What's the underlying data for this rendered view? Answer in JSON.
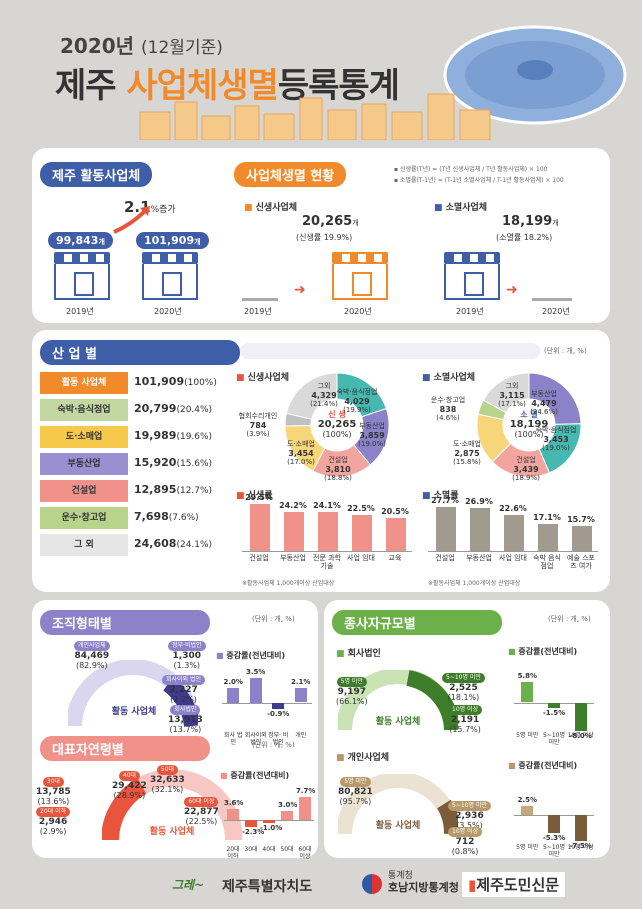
{
  "header": {
    "year_line_bold": "2020년",
    "year_line_rest": "(12월기준)",
    "title_a": "제주",
    "title_b": "사업체생멸",
    "title_c": "등록통계"
  },
  "s1": {
    "active_title": "제주 활동사업체",
    "status_title": "사업체생멸 현황",
    "note1": "▪ 신생률(T년) = (T년 신생사업체 / T년 활동사업체) × 100",
    "note2": "▪ 소멸률(T-1년) = (T-1년 소멸사업체 / T-1년 활동사업체) × 100",
    "increase": "2.1",
    "increase_unit": "%증가",
    "v2019": "99,843",
    "v2020": "101,909",
    "unit_gae": "개",
    "y2019": "2019년",
    "y2020": "2020년",
    "new_tag": "신생사업체",
    "new_value": "20,265",
    "new_rate": "(신생률 19.9%)",
    "gone_tag": "소멸사업체",
    "gone_value": "18,199",
    "gone_rate": "(소멸률 18.2%)"
  },
  "s2": {
    "title": "산 업 별",
    "unit": "(단위 : 개, %)",
    "rows": [
      {
        "label": "활동 사업체",
        "value": "101,909",
        "pct": "(100%)",
        "color": "#f08a2a"
      },
      {
        "label": "숙박·음식점업",
        "value": "20,799",
        "pct": "(20.4%)",
        "color": "#c3d7a3"
      },
      {
        "label": "도·소매업",
        "value": "19,989",
        "pct": "(19.6%)",
        "color": "#f6c94a"
      },
      {
        "label": "부동산업",
        "value": "15,920",
        "pct": "(15.6%)",
        "color": "#9a8fd1"
      },
      {
        "label": "건설업",
        "value": "12,895",
        "pct": "(12.7%)",
        "color": "#f0928a"
      },
      {
        "label": "운수·창고업",
        "value": "7,698",
        "pct": "(7.6%)",
        "color": "#b8d48a"
      },
      {
        "label": "그 외",
        "value": "24,608",
        "pct": "(24.1%)",
        "color": "#e6e6e6"
      }
    ],
    "new_title": "신생사업체",
    "new_center": "신 생",
    "new_total": "20,265",
    "new_total_pct": "(100%)",
    "new_slices": [
      {
        "label": "숙박·음식점업",
        "value": "4,029",
        "pct": "(19.9%)",
        "color": "#46b8b0",
        "frac": 0.199
      },
      {
        "label": "부동산업",
        "value": "3,859",
        "pct": "(19.0%)",
        "color": "#8b82c9",
        "frac": 0.19
      },
      {
        "label": "건설업",
        "value": "3,810",
        "pct": "(18.8%)",
        "color": "#f2a59e",
        "frac": 0.188
      },
      {
        "label": "도·소매업",
        "value": "3,454",
        "pct": "(17.0%)",
        "color": "#f7d679",
        "frac": 0.17
      },
      {
        "label": "협회수리개인",
        "value": "784",
        "pct": "(3.9%)",
        "color": "#c0c0c0",
        "frac": 0.039
      },
      {
        "label": "그외",
        "value": "4,329",
        "pct": "(21.4%)",
        "color": "#d9d9d9",
        "frac": 0.214
      }
    ],
    "gone_title": "소멸사업체",
    "gone_center": "소 멸",
    "gone_total": "18,199",
    "gone_total_pct": "(100%)",
    "gone_slices": [
      {
        "label": "부동산업",
        "value": "4,479",
        "pct": "(24.6%)",
        "color": "#8b82c9",
        "frac": 0.246
      },
      {
        "label": "숙박·음식점업",
        "value": "3,453",
        "pct": "(19.0%)",
        "color": "#46b8b0",
        "frac": 0.19
      },
      {
        "label": "건설업",
        "value": "3,439",
        "pct": "(18.9%)",
        "color": "#f2a59e",
        "frac": 0.189
      },
      {
        "label": "도·소매업",
        "value": "2,875",
        "pct": "(15.8%)",
        "color": "#f7d679",
        "frac": 0.158
      },
      {
        "label": "운수·창고업",
        "value": "838",
        "pct": "(4.6%)",
        "color": "#b8d48a",
        "frac": 0.046
      },
      {
        "label": "그외",
        "value": "3,115",
        "pct": "(17.1%)",
        "color": "#d9d9d9",
        "frac": 0.171
      }
    ],
    "new_rate_title": "신생률",
    "new_rates": [
      {
        "v": 29.5,
        "l": "건설업"
      },
      {
        "v": 24.2,
        "l": "부동산업"
      },
      {
        "v": 24.1,
        "l": "전문 과학 기술"
      },
      {
        "v": 22.5,
        "l": "사업 임대"
      },
      {
        "v": 20.5,
        "l": "교육"
      }
    ],
    "gone_rate_title": "소멸률",
    "gone_rates": [
      {
        "v": 27.7,
        "l": "건설업"
      },
      {
        "v": 26.9,
        "l": "부동산업"
      },
      {
        "v": 22.6,
        "l": "사업 임대"
      },
      {
        "v": 17.1,
        "l": "숙박 음식점업"
      },
      {
        "v": 15.7,
        "l": "예술 스포츠 여가"
      }
    ],
    "foot": "※활동사업체 1,000개이상 산업대상"
  },
  "s3": {
    "org_title": "조직형태별",
    "unit": "(단위 : 개, %)",
    "gauge_label": "활동 사업체",
    "org_items": [
      {
        "tag": "개인사업체",
        "value": "84,469",
        "pct": "(82.9%)"
      },
      {
        "tag": "정부·비법인",
        "value": "1,300",
        "pct": "(1.3%)"
      },
      {
        "tag": "회사이외 법인",
        "value": "2,227",
        "pct": "(2.2%)"
      },
      {
        "tag": "회사법인",
        "value": "13,913",
        "pct": "(13.7%)"
      }
    ],
    "chg_title": "증감률(전년대비)",
    "org_chg": [
      {
        "v": 2.0,
        "l": "회사 법인"
      },
      {
        "v": 3.5,
        "l": "회사이외 법인"
      },
      {
        "v": -0.9,
        "l": "정부· 비법인"
      },
      {
        "v": 2.1,
        "l": "개인"
      }
    ],
    "age_title": "대표자연령별",
    "age_items": [
      {
        "tag": "30대",
        "value": "13,785",
        "pct": "(13.6%)"
      },
      {
        "tag": "20대 이하",
        "value": "2,946",
        "pct": "(2.9%)"
      },
      {
        "tag": "40대",
        "value": "29,422",
        "pct": "(28.9%)"
      },
      {
        "tag": "50대",
        "value": "32,633",
        "pct": "(32.1%)"
      },
      {
        "tag": "60대 이상",
        "value": "22,877",
        "pct": "(22.5%)"
      }
    ],
    "age_chg": [
      {
        "v": 3.6,
        "l": "20대 이하"
      },
      {
        "v": -2.3,
        "l": "30대"
      },
      {
        "v": -1.0,
        "l": "40대"
      },
      {
        "v": 3.0,
        "l": "50대"
      },
      {
        "v": 7.7,
        "l": "60대 이상"
      }
    ],
    "size_title": "종사자규모별",
    "corp_tag": "회사법인",
    "corp_items": [
      {
        "tag": "5명 미만",
        "value": "9,197",
        "pct": "(66.1%)"
      },
      {
        "tag": "5~10명 미만",
        "value": "2,525",
        "pct": "(18.1%)"
      },
      {
        "tag": "10명 이상",
        "value": "2,191",
        "pct": "(15.7%)"
      }
    ],
    "corp_chg": [
      {
        "v": 5.8,
        "l": "5명 미만"
      },
      {
        "v": -1.5,
        "l": "5~10명 미만"
      },
      {
        "v": -8.0,
        "l": "10명 이상"
      }
    ],
    "indiv_tag": "개인사업체",
    "indiv_items": [
      {
        "tag": "5명 미만",
        "value": "80,821",
        "pct": "(95.7%)"
      },
      {
        "tag": "5~10명 미만",
        "value": "2,936",
        "pct": "(3.5%)"
      },
      {
        "tag": "10명 이상",
        "value": "712",
        "pct": "(0.8%)"
      }
    ],
    "indiv_chg": [
      {
        "v": 2.5,
        "l": "5명 미만"
      },
      {
        "v": -5.3,
        "l": "5~10명 미만"
      },
      {
        "v": -7.5,
        "l": "10명 이상"
      }
    ]
  },
  "footer": {
    "a": "제주특별자치도",
    "b1": "통계청",
    "b2": "호남지방통계청",
    "c": "제주도민신문",
    "logo": "그레~"
  }
}
